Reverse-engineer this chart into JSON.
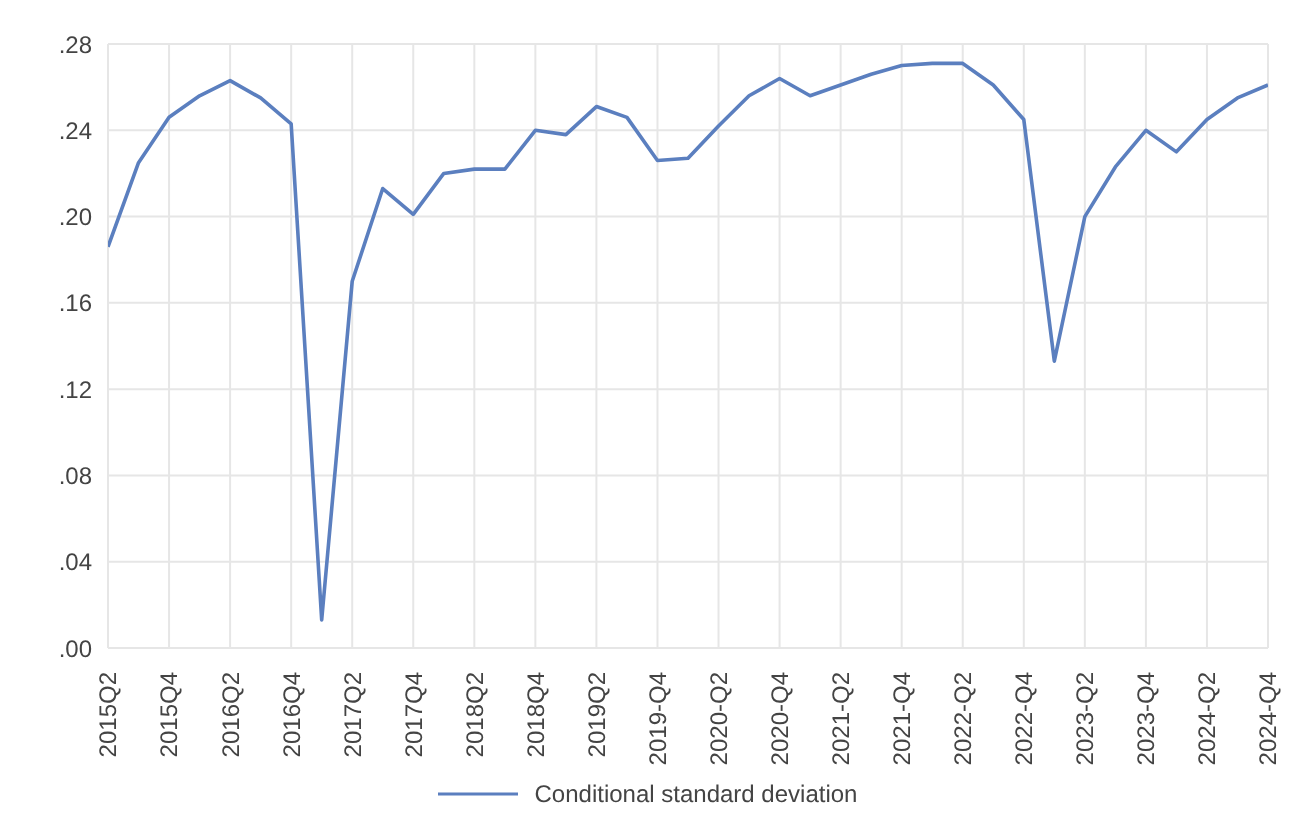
{
  "chart_data": {
    "type": "line",
    "categories": [
      "2015Q2",
      null,
      "2015Q4",
      null,
      "2016Q2",
      null,
      "2016Q4",
      null,
      "2017Q2",
      null,
      "2017Q4",
      null,
      "2018Q2",
      null,
      "2018Q4",
      null,
      "2019Q2",
      null,
      "2019-Q4",
      null,
      "2020-Q2",
      null,
      "2020-Q4",
      null,
      "2021-Q2",
      null,
      "2021-Q4",
      null,
      "2022-Q2",
      null,
      "2022-Q4",
      null,
      "2023-Q2",
      null,
      "2023-Q4",
      null,
      "2024-Q2",
      null,
      "2024-Q4"
    ],
    "series": [
      {
        "name": "Conditional standard deviation",
        "color": "#5b7fbf",
        "values": [
          0.186,
          0.225,
          0.246,
          0.256,
          0.263,
          0.255,
          0.243,
          0.013,
          0.17,
          0.213,
          0.201,
          0.22,
          0.222,
          0.222,
          0.24,
          0.238,
          0.251,
          0.246,
          0.226,
          0.227,
          0.242,
          0.256,
          0.264,
          0.256,
          0.261,
          0.266,
          0.27,
          0.271,
          0.271,
          0.261,
          0.245,
          0.133,
          0.2,
          0.223,
          0.24,
          0.23,
          0.245,
          0.255,
          0.261
        ]
      }
    ],
    "ylim": [
      0,
      0.28
    ],
    "yticks": [
      {
        "value": 0,
        "label": ".00"
      },
      {
        "value": 0.04,
        "label": ".04"
      },
      {
        "value": 0.08,
        "label": ".08"
      },
      {
        "value": 0.12,
        "label": ".12"
      },
      {
        "value": 0.16,
        "label": ".16"
      },
      {
        "value": 0.2,
        "label": ".20"
      },
      {
        "value": 0.24,
        "label": ".24"
      },
      {
        "value": 0.28,
        "label": ".28"
      }
    ],
    "grid": true,
    "legend": "bottom",
    "marker": "none",
    "line_style": "solid"
  }
}
